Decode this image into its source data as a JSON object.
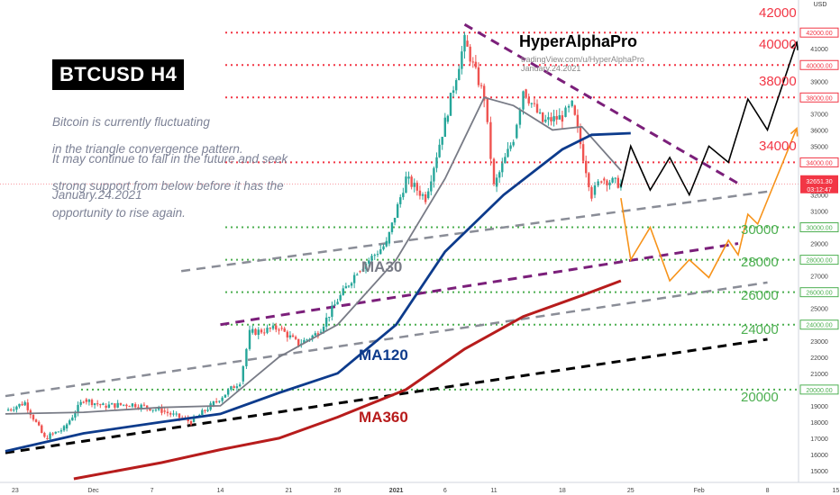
{
  "header": {
    "title": "BTCUSD H4",
    "description_lines": [
      "Bitcoin is currently fluctuating",
      "in the triangle convergence pattern."
    ],
    "description_lines2": [
      "It may continue to fall in the future and seek",
      "strong support from below before it has the",
      "opportunity to rise again."
    ],
    "date": "January.24.2021"
  },
  "brand": {
    "name": "HyperAlphaPro",
    "url": "tradingView.com/u/HyperAlphaPro",
    "date": "January.24.2021"
  },
  "currency": "USD",
  "colors": {
    "resistance_red": "#f23645",
    "support_green": "#4caf50",
    "ma30": "#787b86",
    "ma120": "#0d3b8c",
    "ma360": "#b71c1c",
    "triangle_purple": "#7b1f7a",
    "projection_up": "#000000",
    "projection_down": "#f7931a",
    "candle_up": "#26a69a",
    "candle_down": "#ef5350"
  },
  "chart_data": {
    "type": "candlestick",
    "symbol": "BTCUSD",
    "timeframe": "H4",
    "ylim": [
      14500,
      42500
    ],
    "y_ticks": [
      15000,
      16000,
      17000,
      18000,
      19000,
      20000,
      21000,
      22000,
      23000,
      24000,
      25000,
      26000,
      27000,
      28000,
      29000,
      30000,
      31000,
      32000,
      33000,
      34000,
      35000,
      36000,
      37000,
      38000,
      39000,
      40000,
      41000
    ],
    "x_ticks": [
      "23",
      "Dec",
      "7",
      "14",
      "21",
      "26",
      "2021",
      "6",
      "11",
      "18",
      "25",
      "Feb",
      "8",
      "15"
    ],
    "current_price": "32651.30",
    "countdown": "03:12:47",
    "resistance_levels": [
      42000,
      40000,
      38000,
      34000
    ],
    "support_levels": [
      30000,
      28000,
      26000,
      24000,
      20000
    ],
    "moving_averages": [
      {
        "name": "MA30"
      },
      {
        "name": "MA120"
      },
      {
        "name": "MA360"
      }
    ],
    "price_path": [
      {
        "date": "2020-11-22",
        "price": 18700
      },
      {
        "date": "2020-11-24",
        "price": 19200
      },
      {
        "date": "2020-11-26",
        "price": 17000
      },
      {
        "date": "2020-11-28",
        "price": 17600
      },
      {
        "date": "2020-11-30",
        "price": 19400
      },
      {
        "date": "2020-12-02",
        "price": 19000
      },
      {
        "date": "2020-12-05",
        "price": 19100
      },
      {
        "date": "2020-12-08",
        "price": 18700
      },
      {
        "date": "2020-12-11",
        "price": 18000
      },
      {
        "date": "2020-12-13",
        "price": 19000
      },
      {
        "date": "2020-12-16",
        "price": 20500
      },
      {
        "date": "2020-12-17",
        "price": 23500
      },
      {
        "date": "2020-12-20",
        "price": 23800
      },
      {
        "date": "2020-12-22",
        "price": 22800
      },
      {
        "date": "2020-12-24",
        "price": 23500
      },
      {
        "date": "2020-12-26",
        "price": 25500
      },
      {
        "date": "2020-12-28",
        "price": 27300
      },
      {
        "date": "2020-12-31",
        "price": 29000
      },
      {
        "date": "2021-01-02",
        "price": 33000
      },
      {
        "date": "2021-01-04",
        "price": 31800
      },
      {
        "date": "2021-01-06",
        "price": 36500
      },
      {
        "date": "2021-01-08",
        "price": 41500
      },
      {
        "date": "2021-01-10",
        "price": 38000
      },
      {
        "date": "2021-01-11",
        "price": 32500
      },
      {
        "date": "2021-01-13",
        "price": 35500
      },
      {
        "date": "2021-01-14",
        "price": 38500
      },
      {
        "date": "2021-01-16",
        "price": 36500
      },
      {
        "date": "2021-01-18",
        "price": 36800
      },
      {
        "date": "2021-01-19",
        "price": 37500
      },
      {
        "date": "2021-01-21",
        "price": 32000
      },
      {
        "date": "2021-01-22",
        "price": 33000
      },
      {
        "date": "2021-01-24",
        "price": 32650
      }
    ],
    "ma30_path": [
      {
        "date": "2020-11-22",
        "price": 18500
      },
      {
        "date": "2020-11-30",
        "price": 18600
      },
      {
        "date": "2020-12-08",
        "price": 18900
      },
      {
        "date": "2020-12-14",
        "price": 19000
      },
      {
        "date": "2020-12-20",
        "price": 22000
      },
      {
        "date": "2020-12-26",
        "price": 24000
      },
      {
        "date": "2021-01-01",
        "price": 28000
      },
      {
        "date": "2021-01-06",
        "price": 33000
      },
      {
        "date": "2021-01-10",
        "price": 38000
      },
      {
        "date": "2021-01-13",
        "price": 37500
      },
      {
        "date": "2021-01-17",
        "price": 36000
      },
      {
        "date": "2021-01-20",
        "price": 36200
      },
      {
        "date": "2021-01-24",
        "price": 33500
      }
    ],
    "ma120_path": [
      {
        "date": "2020-11-22",
        "price": 16200
      },
      {
        "date": "2020-11-30",
        "price": 17300
      },
      {
        "date": "2020-12-08",
        "price": 18000
      },
      {
        "date": "2020-12-14",
        "price": 18500
      },
      {
        "date": "2020-12-20",
        "price": 19800
      },
      {
        "date": "2020-12-26",
        "price": 21000
      },
      {
        "date": "2021-01-01",
        "price": 24000
      },
      {
        "date": "2021-01-06",
        "price": 28500
      },
      {
        "date": "2021-01-12",
        "price": 32000
      },
      {
        "date": "2021-01-18",
        "price": 34800
      },
      {
        "date": "2021-01-21",
        "price": 35700
      },
      {
        "date": "2021-01-25",
        "price": 35800
      }
    ],
    "ma360_path": [
      {
        "date": "2020-11-29",
        "price": 14500
      },
      {
        "date": "2020-12-08",
        "price": 15500
      },
      {
        "date": "2020-12-14",
        "price": 16300
      },
      {
        "date": "2020-12-20",
        "price": 17000
      },
      {
        "date": "2020-12-26",
        "price": 18300
      },
      {
        "date": "2021-01-02",
        "price": 20000
      },
      {
        "date": "2021-01-08",
        "price": 22500
      },
      {
        "date": "2021-01-14",
        "price": 24500
      },
      {
        "date": "2021-01-20",
        "price": 25800
      },
      {
        "date": "2021-01-24",
        "price": 26700
      }
    ],
    "projection_up": [
      {
        "date": "2021-01-24",
        "price": 32500
      },
      {
        "date": "2021-01-25",
        "price": 35000
      },
      {
        "date": "2021-01-27",
        "price": 32300
      },
      {
        "date": "2021-01-29",
        "price": 34300
      },
      {
        "date": "2021-01-31",
        "price": 32000
      },
      {
        "date": "2021-02-02",
        "price": 35000
      },
      {
        "date": "2021-02-04",
        "price": 34000
      },
      {
        "date": "2021-02-06",
        "price": 37900
      },
      {
        "date": "2021-02-08",
        "price": 36000
      },
      {
        "date": "2021-02-11",
        "price": 41400
      }
    ],
    "projection_down": [
      {
        "date": "2021-01-24",
        "price": 31800
      },
      {
        "date": "2021-01-25",
        "price": 28000
      },
      {
        "date": "2021-01-27",
        "price": 30000
      },
      {
        "date": "2021-01-29",
        "price": 26700
      },
      {
        "date": "2021-01-31",
        "price": 28000
      },
      {
        "date": "2021-02-02",
        "price": 26900
      },
      {
        "date": "2021-02-04",
        "price": 29200
      },
      {
        "date": "2021-02-05",
        "price": 28300
      },
      {
        "date": "2021-02-06",
        "price": 30800
      },
      {
        "date": "2021-02-07",
        "price": 30200
      },
      {
        "date": "2021-02-11",
        "price": 36100
      }
    ],
    "trendlines": [
      {
        "name": "triangle-top",
        "style": "purple-dashed",
        "from": {
          "date": "2021-01-08",
          "price": 42500
        },
        "to": {
          "date": "2021-02-05",
          "price": 32700
        }
      },
      {
        "name": "triangle-bottom",
        "style": "purple-dashed",
        "from": {
          "date": "2020-12-14",
          "price": 24000
        },
        "to": {
          "date": "2021-02-05",
          "price": 29000
        }
      },
      {
        "name": "upper-channel",
        "style": "grey-dashed",
        "from": {
          "date": "2020-12-10",
          "price": 27300
        },
        "to": {
          "date": "2021-02-08",
          "price": 32200
        }
      },
      {
        "name": "mid-channel",
        "style": "grey-dashed",
        "from": {
          "date": "2020-11-22",
          "price": 19600
        },
        "to": {
          "date": "2021-02-08",
          "price": 26600
        }
      },
      {
        "name": "lower-channel",
        "style": "black-dashed",
        "from": {
          "date": "2020-11-22",
          "price": 16100
        },
        "to": {
          "date": "2021-02-08",
          "price": 23100
        }
      }
    ]
  }
}
